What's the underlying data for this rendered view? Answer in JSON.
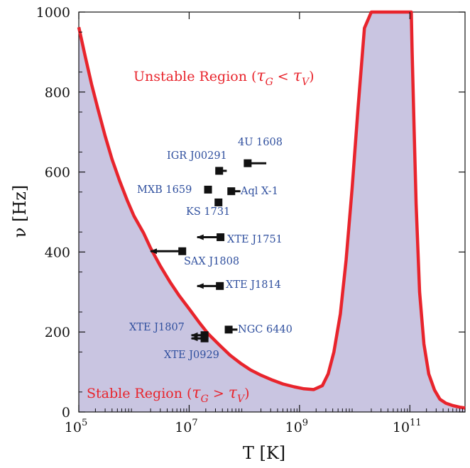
{
  "chart_data": {
    "type": "line",
    "xlabel": "T [K]",
    "ylabel": "ν [Hz]",
    "x_scale": "log",
    "xlim": [
      100000,
      1000000000000
    ],
    "ylim": [
      0,
      1000
    ],
    "x_ticks": [
      100000,
      10000000,
      1000000000,
      100000000000
    ],
    "x_tick_labels": [
      {
        "base": "10",
        "exp": "5"
      },
      {
        "base": "10",
        "exp": "7"
      },
      {
        "base": "10",
        "exp": "9"
      },
      {
        "base": "10",
        "exp": "11"
      }
    ],
    "y_ticks": [
      0,
      200,
      400,
      600,
      800,
      1000
    ],
    "y_tick_labels": [
      "0",
      "200",
      "400",
      "600",
      "800",
      "1000"
    ],
    "grid": false,
    "colors": {
      "boundary": "#e8242c",
      "stable_fill": "#c9c5e1",
      "source_label": "#2f4f9e",
      "marker": "#111111"
    },
    "boundary_curve": {
      "x": [
        100000,
        130000,
        170000,
        220000,
        300000,
        400000,
        550000,
        750000,
        1000000,
        1500000,
        2000000,
        3000000,
        4500000,
        6500000,
        10000000,
        15000000,
        22000000,
        35000000,
        55000000,
        85000000,
        130000000,
        200000000,
        320000000,
        500000000,
        800000000,
        1200000000,
        1800000000,
        2600000000,
        3300000000,
        4200000000,
        5500000000,
        7000000000,
        9000000000,
        11500000000,
        15000000000,
        20000000000,
        24000000000,
        26000000000,
        28000000000,
        30000000000,
        50000000000,
        80000000000,
        106000000000,
        110000000000,
        120000000000,
        130000000000,
        150000000000,
        180000000000,
        220000000000,
        280000000000,
        350000000000,
        450000000000,
        600000000000,
        800000000000,
        1000000000000
      ],
      "y": [
        962,
        890,
        820,
        760,
        690,
        632,
        578,
        530,
        490,
        447,
        410,
        365,
        325,
        292,
        258,
        225,
        196,
        168,
        142,
        122,
        105,
        92,
        80,
        70,
        63,
        58,
        56,
        66,
        95,
        150,
        245,
        380,
        560,
        760,
        960,
        1000,
        1000,
        1000,
        1000,
        1000,
        1000,
        1000,
        1000,
        900,
        700,
        520,
        300,
        170,
        95,
        55,
        32,
        22,
        16,
        12,
        10
      ]
    },
    "region_labels": [
      {
        "text": "Unstable Region (",
        "sym1": "τ",
        "sub1": "G",
        "op": " < ",
        "sym2": "τ",
        "sub2": "V",
        "close": ")"
      },
      {
        "text": "Stable Region (",
        "sym1": "τ",
        "sub1": "G",
        "op": " > ",
        "sym2": "τ",
        "sub2": "V",
        "close": ")"
      }
    ],
    "sources": [
      {
        "name": "4U 1608",
        "x": 115000000,
        "y": 622,
        "x_to": 250000000
      },
      {
        "name": "IGR J00291",
        "x": 35000000,
        "y": 603,
        "x_to": 48000000
      },
      {
        "name": "MXB 1659",
        "x": 22000000,
        "y": 556,
        "x_to": null
      },
      {
        "name": "Aql X-1",
        "x": 58000000,
        "y": 552,
        "x_to": 85000000
      },
      {
        "name": "KS 1731",
        "x": 34000000,
        "y": 524,
        "x_to": null
      },
      {
        "name": "XTE J1751",
        "x": 37000000,
        "y": 437,
        "x_to": 14000000
      },
      {
        "name": "SAX J1808",
        "x": 7500000,
        "y": 402,
        "x_to": 2000000
      },
      {
        "name": "XTE J1814",
        "x": 36000000,
        "y": 315,
        "x_to": 14000000
      },
      {
        "name": "NGC 6440",
        "x": 52000000,
        "y": 206,
        "x_to": 75000000
      },
      {
        "name": "XTE J1807",
        "x": 19000000,
        "y": 192,
        "x_to": 11000000
      },
      {
        "name": "XTE J0929",
        "x": 19000000,
        "y": 184,
        "x_to": 11000000
      }
    ]
  }
}
